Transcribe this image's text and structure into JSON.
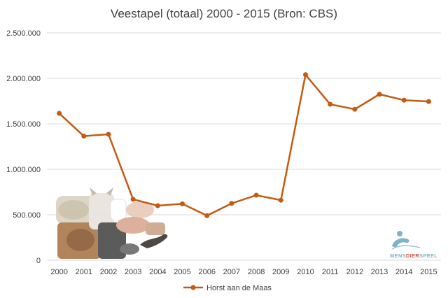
{
  "chart_data": {
    "type": "line",
    "title": "Veestapel (totaal) 2000 - 2015 (Bron: CBS)",
    "x": [
      "2000",
      "2001",
      "2002",
      "2003",
      "2004",
      "2005",
      "2006",
      "2007",
      "2008",
      "2009",
      "2010",
      "2011",
      "2012",
      "2013",
      "2014",
      "2015"
    ],
    "series": [
      {
        "name": "Horst aan de Maas",
        "color": "#c55a11",
        "values": [
          1615000,
          1365000,
          1385000,
          670000,
          600000,
          620000,
          490000,
          625000,
          715000,
          660000,
          2040000,
          1715000,
          1660000,
          1825000,
          1760000,
          1745000
        ]
      }
    ],
    "ylim": [
      0,
      2500000
    ],
    "yticks": [
      0,
      500000,
      1000000,
      1500000,
      2000000,
      2500000
    ],
    "ytick_labels": [
      "0",
      "500.000",
      "1.000.000",
      "1.500.000",
      "2.000.000",
      "2.500.000"
    ],
    "grid": true,
    "legend_position": "bottom"
  },
  "logo": {
    "text_mens": "MENS",
    "text_dier": "DIER",
    "text_s": "S",
    "text_peel": "PEEL",
    "color_primary": "#7fb3c8",
    "color_accent": "#c8553d"
  }
}
